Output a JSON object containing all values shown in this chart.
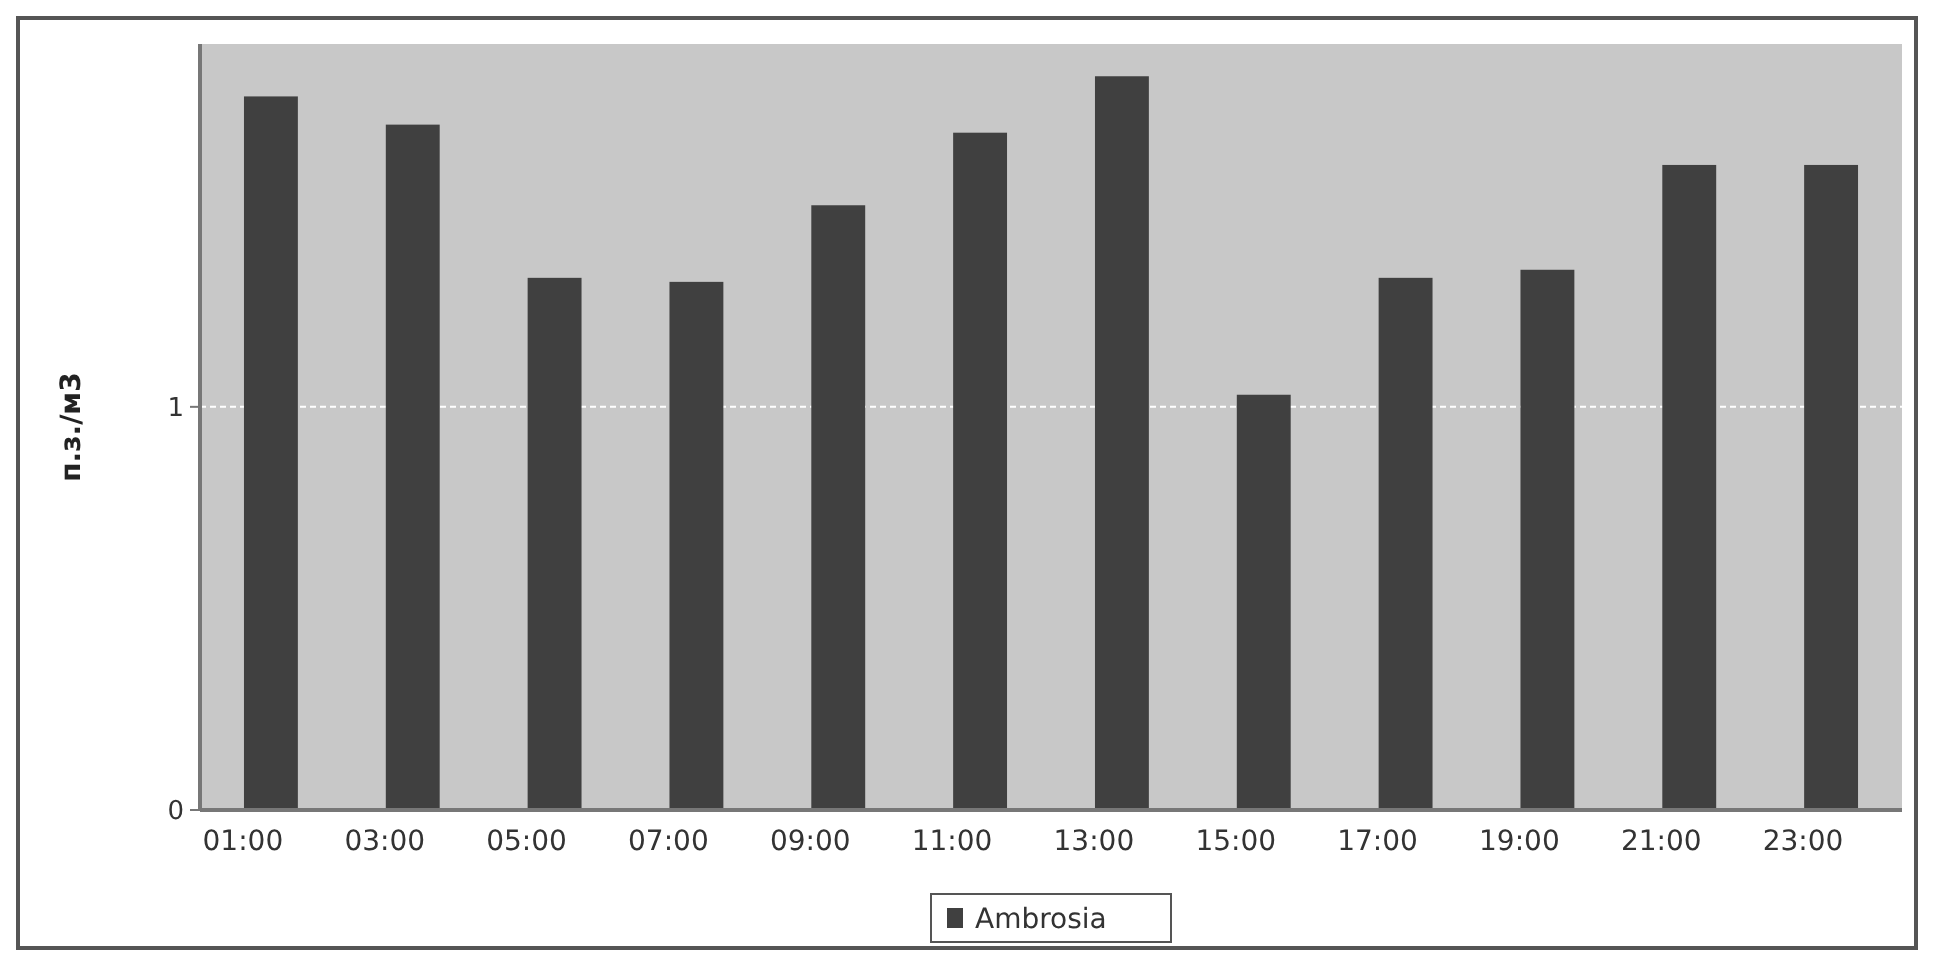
{
  "chart_data": {
    "type": "bar",
    "ylabel": "п.з./м3",
    "categories": [
      "01:00",
      "03:00",
      "05:00",
      "07:00",
      "09:00",
      "11:00",
      "13:00",
      "15:00",
      "17:00",
      "19:00",
      "21:00",
      "23:00"
    ],
    "series": [
      {
        "name": "Ambrosia",
        "color": "#404040",
        "values": [
          1.77,
          1.7,
          1.32,
          1.31,
          1.5,
          1.68,
          1.82,
          1.03,
          1.32,
          1.34,
          1.6,
          1.6
        ]
      }
    ],
    "ylim": [
      0,
      1.9
    ],
    "yticks": [
      0,
      1
    ],
    "grid": "y",
    "legend": "bottom"
  }
}
